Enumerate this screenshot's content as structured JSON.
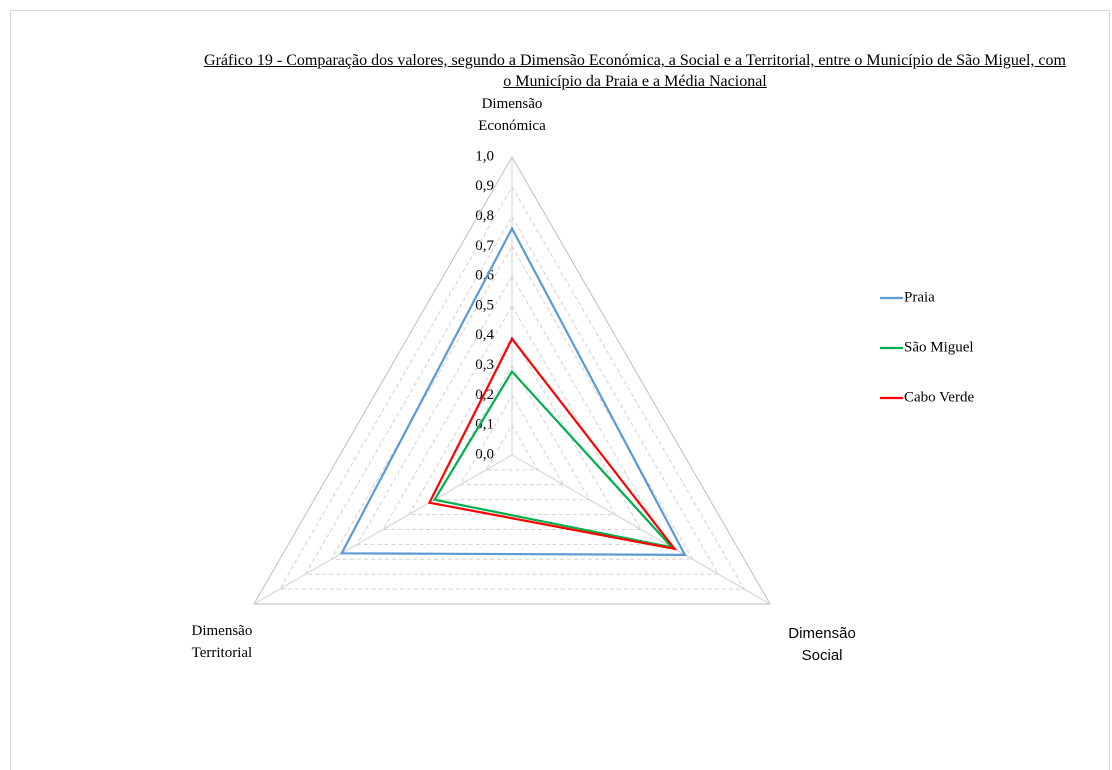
{
  "chart_data": {
    "type": "radar",
    "title": "Gráfico 19 - Comparação dos valores, segundo a Dimensão Económica, a Social e a Territorial, entre o Município de São Miguel, com o Município da Praia e a Média Nacional",
    "categories": [
      "Dimensão Económica",
      "Dimensão Social",
      "Dimensão Territorial"
    ],
    "series": [
      {
        "name": "Praia",
        "color": "#5b9bd5",
        "values": [
          0.76,
          0.67,
          0.66
        ]
      },
      {
        "name": "São Miguel",
        "color": "#00b050",
        "values": [
          0.28,
          0.62,
          0.3
        ]
      },
      {
        "name": "Cabo Verde",
        "color": "#ff0000",
        "values": [
          0.39,
          0.63,
          0.32
        ]
      }
    ],
    "ylim": [
      0,
      1
    ],
    "yticks": [
      {
        "value": 0,
        "label": "0,0"
      },
      {
        "value": 0.1,
        "label": "0,1"
      },
      {
        "value": 0.2,
        "label": "0,2"
      },
      {
        "value": 0.3,
        "label": "0,3"
      },
      {
        "value": 0.4,
        "label": "0,4"
      },
      {
        "value": 0.5,
        "label": "0,5"
      },
      {
        "value": 0.6,
        "label": "0,6"
      },
      {
        "value": 0.7,
        "label": "0,7"
      },
      {
        "value": 0.8,
        "label": "0,8"
      },
      {
        "value": 0.9,
        "label": "0,9"
      },
      {
        "value": 1,
        "label": "1,0"
      }
    ],
    "grid": true,
    "legend": "right"
  }
}
